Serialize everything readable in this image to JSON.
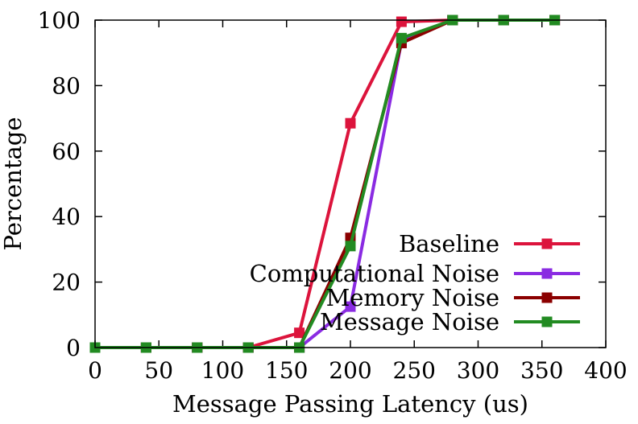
{
  "chart_data": {
    "type": "line",
    "xlabel": "Message Passing Latency (us)",
    "ylabel": "Percentage",
    "xlim": [
      0,
      400
    ],
    "ylim": [
      0,
      100
    ],
    "xticks": [
      0,
      50,
      100,
      150,
      200,
      250,
      300,
      350,
      400
    ],
    "yticks": [
      0,
      20,
      40,
      60,
      80,
      100
    ],
    "grid": false,
    "legend_position": "bottom-right",
    "x": [
      0,
      40,
      80,
      120,
      160,
      200,
      240,
      280,
      320,
      360
    ],
    "series": [
      {
        "name": "Baseline",
        "color": "#dc143c",
        "values": [
          0,
          0,
          0,
          0,
          4.5,
          68.5,
          99.5,
          100,
          100,
          100
        ]
      },
      {
        "name": "Computational Noise",
        "color": "#8a2be2",
        "values": [
          0,
          0,
          0,
          0,
          0,
          12.5,
          93.5,
          100,
          100,
          100
        ]
      },
      {
        "name": "Memory Noise",
        "color": "#8b0000",
        "values": [
          0,
          0,
          0,
          0,
          0,
          33.5,
          93,
          100,
          100,
          100
        ]
      },
      {
        "name": "Message Noise",
        "color": "#228b22",
        "values": [
          0,
          0,
          0,
          0,
          0,
          31,
          94.5,
          100,
          100,
          100
        ]
      }
    ]
  }
}
